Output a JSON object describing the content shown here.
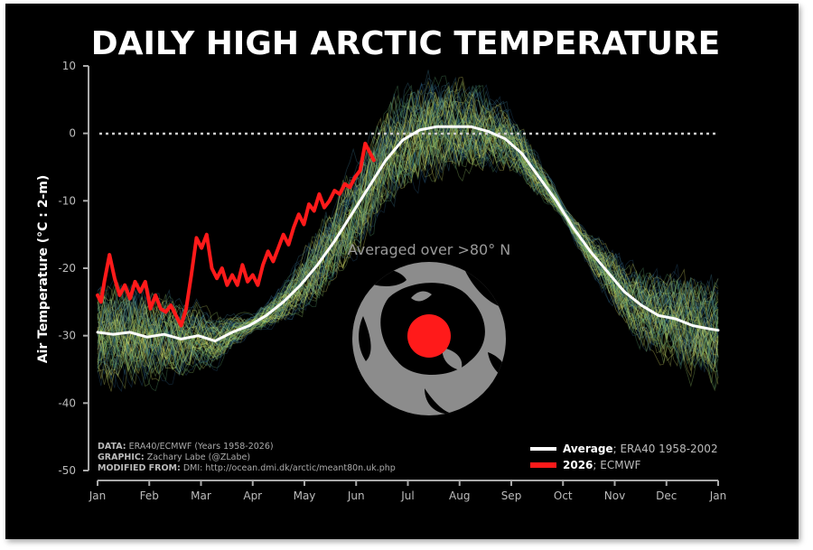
{
  "chart_data": {
    "type": "line",
    "title": "DAILY HIGH ARCTIC TEMPERATURE",
    "ylabel": "Air Temperature (°C : 2-m)",
    "xlabel": "",
    "ylim": [
      -50,
      10
    ],
    "yticks": [
      10,
      0,
      -10,
      -20,
      -30,
      -40,
      -50
    ],
    "xticks": [
      "Jan",
      "Feb",
      "Mar",
      "Apr",
      "May",
      "Jun",
      "Jul",
      "Aug",
      "Sep",
      "Oct",
      "Nov",
      "Dec",
      "Jan"
    ],
    "grid": false,
    "reference_line": {
      "y": 0,
      "style": "dotted"
    },
    "series": [
      {
        "name": "Average",
        "legend_label": "Average",
        "legend_desc": "ERA40 1958-2002",
        "color": "#ffffff",
        "x": [
          1,
          10,
          20,
          30,
          40,
          50,
          60,
          70,
          80,
          90,
          100,
          110,
          120,
          130,
          140,
          150,
          160,
          170,
          180,
          190,
          200,
          210,
          220,
          230,
          240,
          250,
          260,
          270,
          280,
          290,
          300,
          310,
          320,
          330,
          340,
          350,
          360,
          365
        ],
        "y": [
          -29.5,
          -29.8,
          -29.5,
          -30.2,
          -29.8,
          -30.5,
          -30.0,
          -30.8,
          -29.5,
          -28.5,
          -27.0,
          -25.0,
          -22.5,
          -19.5,
          -16.0,
          -12.0,
          -8.0,
          -4.0,
          -1.0,
          0.5,
          1.0,
          1.0,
          1.0,
          0.3,
          -0.8,
          -3.0,
          -6.5,
          -10.0,
          -14.0,
          -17.5,
          -20.5,
          -23.5,
          -25.5,
          -27.0,
          -27.5,
          -28.5,
          -29.0,
          -29.2
        ]
      },
      {
        "name": "2026",
        "legend_label": "2026",
        "legend_desc": "ECMWF",
        "color": "#ff1a1a",
        "x": [
          1,
          3,
          5,
          8,
          11,
          14,
          17,
          20,
          23,
          26,
          29,
          32,
          35,
          38,
          41,
          44,
          47,
          50,
          53,
          56,
          59,
          62,
          65,
          68,
          71,
          74,
          77,
          80,
          83,
          86,
          89,
          92,
          95,
          98,
          101,
          104,
          107,
          110,
          113,
          116,
          119,
          122,
          125,
          128,
          131,
          134,
          137,
          140,
          143,
          146,
          149,
          152,
          155,
          158,
          161,
          163
        ],
        "y": [
          -24.0,
          -25.0,
          -22.0,
          -18.0,
          -21.5,
          -24.0,
          -22.5,
          -24.5,
          -22.0,
          -23.5,
          -22.0,
          -26.0,
          -24.0,
          -26.0,
          -26.5,
          -25.5,
          -27.0,
          -28.5,
          -26.0,
          -21.0,
          -15.5,
          -17.0,
          -15.0,
          -20.0,
          -21.5,
          -20.0,
          -22.5,
          -21.0,
          -22.5,
          -19.5,
          -22.0,
          -21.0,
          -22.5,
          -19.5,
          -17.5,
          -19.0,
          -17.0,
          -15.0,
          -16.5,
          -14.0,
          -12.0,
          -13.5,
          -10.5,
          -11.5,
          -9.0,
          -11.0,
          -10.0,
          -8.5,
          -9.0,
          -7.5,
          -8.0,
          -6.5,
          -5.5,
          -1.5,
          -3.0,
          -4.0
        ]
      }
    ],
    "inset_label": "Averaged over >80° N",
    "credits": [
      {
        "label": "DATA:",
        "text": "ERA40/ECMWF (Years 1958-2026)"
      },
      {
        "label": "GRAPHIC:",
        "text": "Zachary Labe (@ZLabe)"
      },
      {
        "label": "MODIFIED FROM:",
        "text": "DMI: http://ocean.dmi.dk/arctic/meant80n.uk.php"
      }
    ],
    "colors": {
      "background": "#000000",
      "average": "#ffffff",
      "current_year": "#ff1a1a",
      "spaghetti_warm": "#e6e86a",
      "spaghetti_mid": "#5fa873",
      "spaghetti_cool": "#2c5e86",
      "map_land": "#8c8c8c",
      "map_ocean": "#000000",
      "pole_marker": "#ff1a1a"
    }
  }
}
